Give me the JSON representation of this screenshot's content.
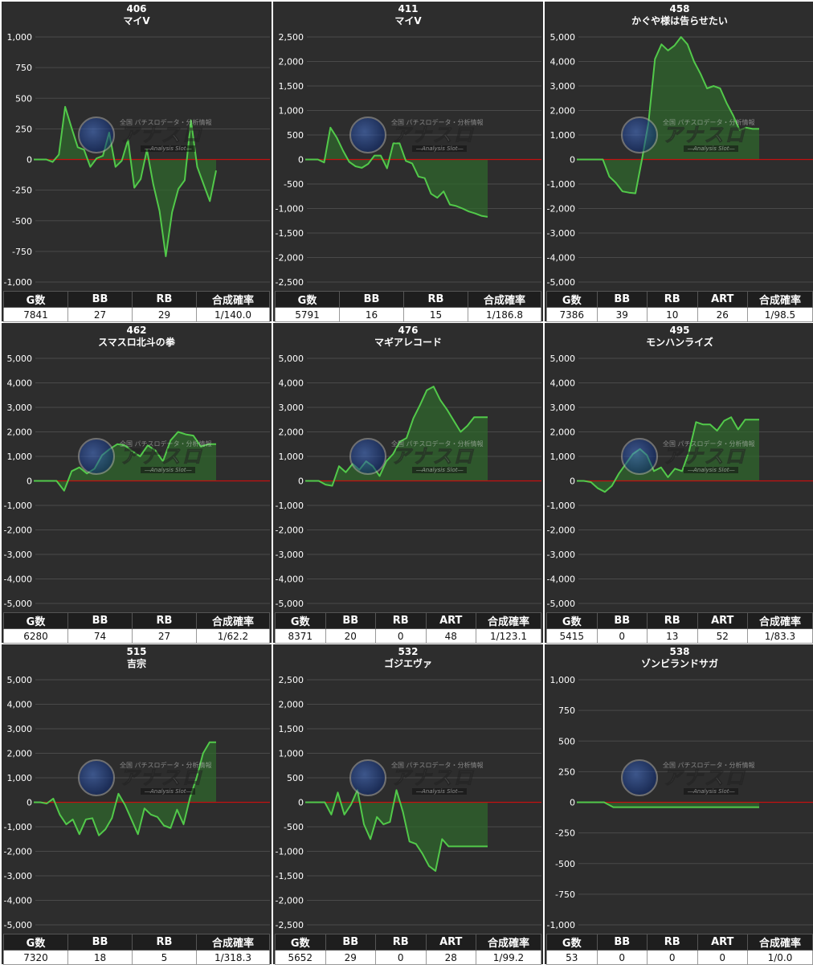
{
  "watermark": {
    "small": "全国 パチスロデータ・分析情報",
    "brand": "アナスロ",
    "sub": "―Analysis Slot―"
  },
  "colors": {
    "line": "#52c94a",
    "fill": "#2f6a2c",
    "zero": "#c41010",
    "panel": "#2d2d2d",
    "grid": "#4a4a4a"
  },
  "chart_data": [
    {
      "type": "line",
      "machine_no": "406",
      "title": "マイV",
      "ylim": [
        -1000,
        1000
      ],
      "yticks": [
        1000,
        750,
        500,
        250,
        0,
        -250,
        -500,
        -750,
        -1000
      ],
      "ytick_labels": [
        "1,000",
        "750",
        "500",
        "250",
        "0",
        "-250",
        "-500",
        "-750",
        "-1,000"
      ],
      "series": [
        {
          "values": [
            0,
            0,
            0,
            -20,
            40,
            430,
            260,
            100,
            80,
            -60,
            10,
            30,
            220,
            -60,
            -10,
            160,
            -230,
            -160,
            80,
            -200,
            -420,
            -790,
            -430,
            -240,
            -170,
            320,
            -60,
            -200,
            -340,
            -90
          ]
        }
      ],
      "table": {
        "headers": [
          "G数",
          "BB",
          "RB",
          "合成確率"
        ],
        "row": [
          "7841",
          "27",
          "29",
          "1/140.0"
        ]
      }
    },
    {
      "type": "line",
      "machine_no": "411",
      "title": "マイV",
      "ylim": [
        -2500,
        2500
      ],
      "yticks": [
        2500,
        2000,
        1500,
        1000,
        500,
        0,
        -500,
        -1000,
        -1500,
        -2000,
        -2500
      ],
      "ytick_labels": [
        "2,500",
        "2,000",
        "1,500",
        "1,000",
        "500",
        "0",
        "-500",
        "-1,000",
        "-1,500",
        "-2,000",
        "-2,500"
      ],
      "series": [
        {
          "values": [
            0,
            0,
            0,
            -60,
            650,
            450,
            180,
            -50,
            -140,
            -170,
            -90,
            80,
            80,
            -180,
            330,
            330,
            -30,
            -80,
            -350,
            -380,
            -700,
            -780,
            -650,
            -920,
            -950,
            -1000,
            -1060,
            -1100,
            -1150,
            -1170
          ]
        }
      ],
      "table": {
        "headers": [
          "G数",
          "BB",
          "RB",
          "合成確率"
        ],
        "row": [
          "5791",
          "16",
          "15",
          "1/186.8"
        ]
      }
    },
    {
      "type": "line",
      "machine_no": "458",
      "title": "かぐや様は告らせたい",
      "ylim": [
        -5000,
        5000
      ],
      "yticks": [
        5000,
        4000,
        3000,
        2000,
        1000,
        0,
        -1000,
        -2000,
        -3000,
        -4000,
        -5000
      ],
      "ytick_labels": [
        "5,000",
        "4,000",
        "3,000",
        "2,000",
        "1,000",
        "0",
        "-1,000",
        "-2,000",
        "-3,000",
        "-4,000",
        "-5,000"
      ],
      "series": [
        {
          "values": [
            0,
            0,
            0,
            0,
            0,
            -700,
            -950,
            -1300,
            -1350,
            -1380,
            0,
            1500,
            4100,
            4700,
            4450,
            4650,
            5000,
            4700,
            4000,
            3500,
            2900,
            3000,
            2900,
            2300,
            1800,
            1200,
            1300,
            1250,
            1250
          ]
        }
      ],
      "table": {
        "headers": [
          "G数",
          "BB",
          "RB",
          "ART",
          "合成確率"
        ],
        "row": [
          "7386",
          "39",
          "10",
          "26",
          "1/98.5"
        ]
      }
    },
    {
      "type": "line",
      "machine_no": "462",
      "title": "スマスロ北斗の拳",
      "ylim": [
        -5000,
        5000
      ],
      "yticks": [
        5000,
        4000,
        3000,
        2000,
        1000,
        0,
        -1000,
        -2000,
        -3000,
        -4000,
        -5000
      ],
      "ytick_labels": [
        "5,000",
        "4,000",
        "3,000",
        "2,000",
        "1,000",
        "0",
        "-1,000",
        "-2,000",
        "-3,000",
        "-4,000",
        "-5,000"
      ],
      "series": [
        {
          "values": [
            0,
            0,
            0,
            0,
            -400,
            400,
            550,
            300,
            500,
            1050,
            1300,
            1500,
            1450,
            1200,
            1000,
            1450,
            1250,
            800,
            1650,
            2000,
            1900,
            1850,
            1400,
            1500,
            1500
          ]
        }
      ],
      "table": {
        "headers": [
          "G数",
          "BB",
          "RB",
          "合成確率"
        ],
        "row": [
          "6280",
          "74",
          "27",
          "1/62.2"
        ]
      }
    },
    {
      "type": "line",
      "machine_no": "476",
      "title": "マギアレコード",
      "ylim": [
        -5000,
        5000
      ],
      "yticks": [
        5000,
        4000,
        3000,
        2000,
        1000,
        0,
        -1000,
        -2000,
        -3000,
        -4000,
        -5000
      ],
      "ytick_labels": [
        "5,000",
        "4,000",
        "3,000",
        "2,000",
        "1,000",
        "0",
        "-1,000",
        "-2,000",
        "-3,000",
        "-4,000",
        "-5,000"
      ],
      "series": [
        {
          "values": [
            0,
            0,
            0,
            -150,
            -200,
            600,
            350,
            700,
            450,
            800,
            600,
            200,
            800,
            1100,
            1600,
            1750,
            2550,
            3100,
            3700,
            3850,
            3300,
            2900,
            2450,
            2000,
            2250,
            2600,
            2600,
            2600
          ]
        }
      ],
      "table": {
        "headers": [
          "G数",
          "BB",
          "RB",
          "ART",
          "合成確率"
        ],
        "row": [
          "8371",
          "20",
          "0",
          "48",
          "1/123.1"
        ]
      }
    },
    {
      "type": "line",
      "machine_no": "495",
      "title": "モンハンライズ",
      "ylim": [
        -5000,
        5000
      ],
      "yticks": [
        5000,
        4000,
        3000,
        2000,
        1000,
        0,
        -1000,
        -2000,
        -3000,
        -4000,
        -5000
      ],
      "ytick_labels": [
        "5,000",
        "4,000",
        "3,000",
        "2,000",
        "1,000",
        "0",
        "-1,000",
        "-2,000",
        "-3,000",
        "-4,000",
        "-5,000"
      ],
      "series": [
        {
          "values": [
            0,
            0,
            -50,
            -300,
            -450,
            -200,
            300,
            700,
            1100,
            1300,
            1050,
            400,
            550,
            150,
            500,
            400,
            1200,
            2400,
            2300,
            2300,
            2050,
            2450,
            2600,
            2100,
            2500,
            2500,
            2500
          ]
        }
      ],
      "table": {
        "headers": [
          "G数",
          "BB",
          "RB",
          "ART",
          "合成確率"
        ],
        "row": [
          "5415",
          "0",
          "13",
          "52",
          "1/83.3"
        ]
      }
    },
    {
      "type": "line",
      "machine_no": "515",
      "title": "吉宗",
      "ylim": [
        -5000,
        5000
      ],
      "yticks": [
        5000,
        4000,
        3000,
        2000,
        1000,
        0,
        -1000,
        -2000,
        -3000,
        -4000,
        -5000
      ],
      "ytick_labels": [
        "5,000",
        "4,000",
        "3,000",
        "2,000",
        "1,000",
        "0",
        "-1,000",
        "-2,000",
        "-3,000",
        "-4,000",
        "-5,000"
      ],
      "series": [
        {
          "values": [
            0,
            0,
            -50,
            150,
            -500,
            -900,
            -700,
            -1300,
            -700,
            -650,
            -1350,
            -1100,
            -650,
            350,
            -100,
            -700,
            -1300,
            -250,
            -500,
            -600,
            -950,
            -1050,
            -300,
            -900,
            200,
            1000,
            2000,
            2450,
            2450
          ]
        }
      ],
      "table": {
        "headers": [
          "G数",
          "BB",
          "RB",
          "合成確率"
        ],
        "row": [
          "7320",
          "18",
          "5",
          "1/318.3"
        ]
      }
    },
    {
      "type": "line",
      "machine_no": "532",
      "title": "ゴジエヴァ",
      "ylim": [
        -2500,
        2500
      ],
      "yticks": [
        2500,
        2000,
        1500,
        1000,
        500,
        0,
        -500,
        -1000,
        -1500,
        -2000,
        -2500
      ],
      "ytick_labels": [
        "2,500",
        "2,000",
        "1,500",
        "1,000",
        "500",
        "0",
        "-500",
        "-1,000",
        "-1,500",
        "-2,000",
        "-2,500"
      ],
      "series": [
        {
          "values": [
            0,
            0,
            0,
            0,
            -250,
            200,
            -250,
            -50,
            250,
            -450,
            -750,
            -300,
            -450,
            -400,
            250,
            -200,
            -800,
            -850,
            -1050,
            -1300,
            -1400,
            -750,
            -900,
            -900,
            -900,
            -900,
            -900,
            -900,
            -900
          ]
        }
      ],
      "table": {
        "headers": [
          "G数",
          "BB",
          "RB",
          "ART",
          "合成確率"
        ],
        "row": [
          "5652",
          "29",
          "0",
          "28",
          "1/99.2"
        ]
      }
    },
    {
      "type": "line",
      "machine_no": "538",
      "title": "ゾンビランドサガ",
      "ylim": [
        -1000,
        1000
      ],
      "yticks": [
        1000,
        750,
        500,
        250,
        0,
        -250,
        -500,
        -750,
        -1000
      ],
      "ytick_labels": [
        "1,000",
        "750",
        "500",
        "250",
        "0",
        "-250",
        "-500",
        "-750",
        "-1,000"
      ],
      "series": [
        {
          "values": [
            0,
            0,
            0,
            0,
            -40,
            -40,
            -40,
            -40,
            -40,
            -40,
            -40,
            -40,
            -40,
            -40,
            -40,
            -40,
            -40,
            -40,
            -40,
            -40,
            -40
          ]
        }
      ],
      "table": {
        "headers": [
          "G数",
          "BB",
          "RB",
          "ART",
          "合成確率"
        ],
        "row": [
          "53",
          "0",
          "0",
          "0",
          "1/0.0"
        ]
      }
    }
  ]
}
